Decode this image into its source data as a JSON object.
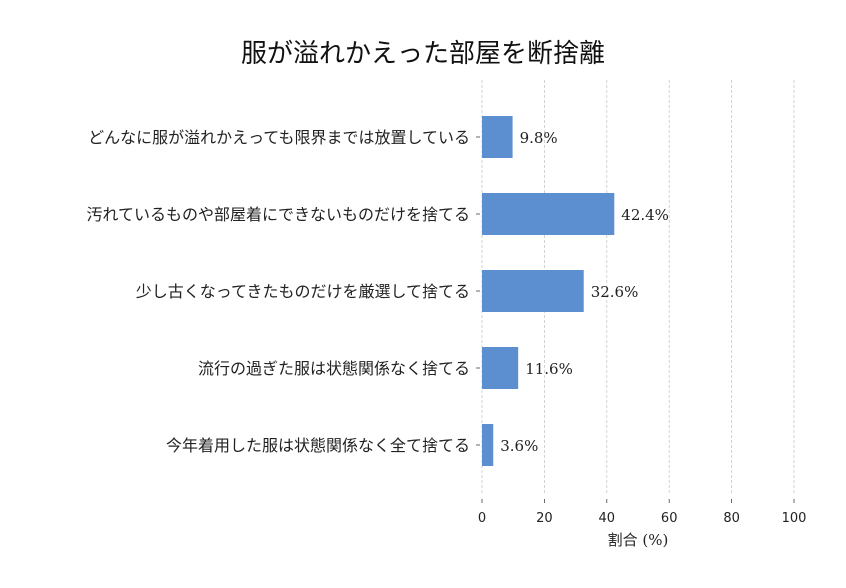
{
  "chart_data": {
    "type": "bar",
    "orientation": "horizontal",
    "title": "服が溢れかえった部屋を断捨離",
    "xlabel": "割合 (%)",
    "ylabel": "",
    "xlim": [
      0,
      100
    ],
    "xticks": [
      "0",
      "20",
      "40",
      "60",
      "80",
      "100"
    ],
    "grid": "vertical dashed",
    "bar_color": "#5b8fd0",
    "categories": [
      "どんなに服が溢れかえっても限界までは放置している",
      "汚れているものや部屋着にできないものだけを捨てる",
      "少し古くなってきたものだけを厳選して捨てる",
      "流行の過ぎた服は状態関係なく捨てる",
      "今年着用した服は状態関係なく全て捨てる"
    ],
    "values": [
      9.8,
      42.4,
      32.6,
      11.6,
      3.6
    ],
    "value_labels": [
      "9.8%",
      "42.4%",
      "32.6%",
      "11.6%",
      "3.6%"
    ]
  }
}
